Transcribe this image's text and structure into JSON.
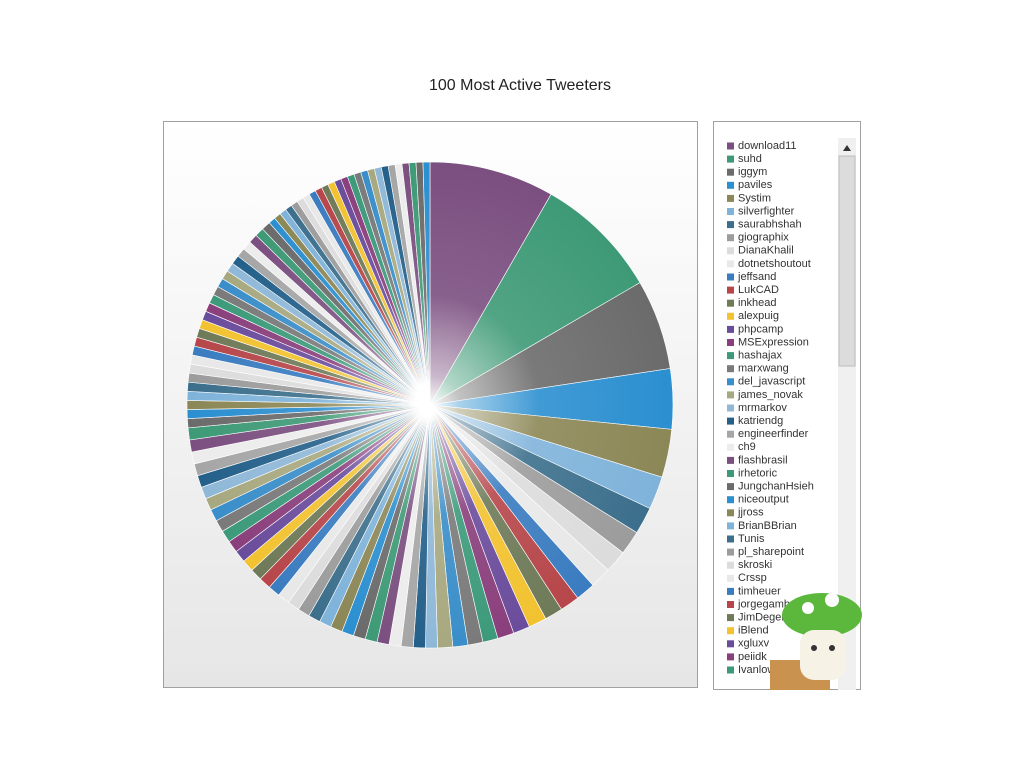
{
  "chart_data": {
    "type": "pie",
    "title": "100 Most Active Tweeters",
    "categories": [
      "download11",
      "suhd",
      "iggym",
      "paviles",
      "Systim",
      "silverfighter",
      "saurabhshah",
      "giographix",
      "DianaKhalil",
      "dotnetshoutout",
      "jeffsand",
      "LukCAD",
      "inkhead",
      "alexpuig",
      "phpcamp",
      "MSExpression",
      "hashajax",
      "marxwang",
      "del_javascript",
      "james_novak",
      "mrmarkov",
      "katriendg",
      "engineerfinder",
      "ch9",
      "flashbrasil",
      "irhetoric",
      "JungchanHsieh",
      "niceoutput",
      "jjross",
      "BrianBBrian",
      "Tunis",
      "pl_sharepoint",
      "skroski",
      "Crssp",
      "timheuer",
      "jorgegamb",
      "JimDeger",
      "iBlend",
      "xgluxv",
      "peiidk",
      "Ivanlow",
      null,
      null,
      null,
      null,
      null,
      null,
      null,
      null,
      null,
      null,
      null,
      null,
      null,
      null,
      null,
      null,
      null,
      null,
      null,
      null,
      null,
      null,
      null,
      null,
      null,
      null,
      null,
      null,
      null,
      null,
      null,
      null,
      null,
      null,
      null,
      null,
      null,
      null,
      null,
      null,
      null,
      null,
      null,
      null,
      null,
      null,
      null,
      null,
      null,
      null,
      null,
      null,
      null,
      null,
      null,
      null,
      null,
      null,
      null
    ],
    "values": [
      8.3,
      8.3,
      6.0,
      4.0,
      3.2,
      2.2,
      1.8,
      1.6,
      1.5,
      1.4,
      1.3,
      1.3,
      1.2,
      1.2,
      1.1,
      1.1,
      1.0,
      1.0,
      1.0,
      1.0,
      0.8,
      0.8,
      0.8,
      0.8,
      0.8,
      0.8,
      0.8,
      0.8,
      0.8,
      0.8,
      0.8,
      0.8,
      0.8,
      0.8,
      0.8,
      0.8,
      0.8,
      0.8,
      0.8,
      0.8,
      0.8,
      0.8,
      0.8,
      0.8,
      0.8,
      0.8,
      0.8,
      0.8,
      0.8,
      0.8,
      0.6,
      0.6,
      0.6,
      0.6,
      0.6,
      0.6,
      0.6,
      0.6,
      0.6,
      0.6,
      0.6,
      0.6,
      0.6,
      0.6,
      0.6,
      0.6,
      0.6,
      0.6,
      0.6,
      0.6,
      0.6,
      0.6,
      0.6,
      0.6,
      0.6,
      0.46,
      0.46,
      0.46,
      0.46,
      0.46,
      0.46,
      0.46,
      0.46,
      0.46,
      0.46,
      0.46,
      0.46,
      0.46,
      0.46,
      0.46,
      0.46,
      0.46,
      0.46,
      0.46,
      0.46,
      0.46,
      0.46,
      0.46,
      0.46,
      0.46
    ],
    "colors": [
      "#7b4f80",
      "#3e9a76",
      "#6b6b6b",
      "#2b8fd0",
      "#8c8756",
      "#7fb3da",
      "#3c6f8c",
      "#9c9c9c",
      "#dcdcdc",
      "#e8e8e8",
      "#3a7cc0",
      "#b6464a",
      "#6e7a58",
      "#f2c230",
      "#6a4c9c",
      "#8a3f7c",
      "#3c9a7a",
      "#7a7a7a",
      "#3a8ec9",
      "#a8a880",
      "#8fb8d8",
      "#24608a",
      "#a6a6a6",
      "#ececec"
    ]
  }
}
